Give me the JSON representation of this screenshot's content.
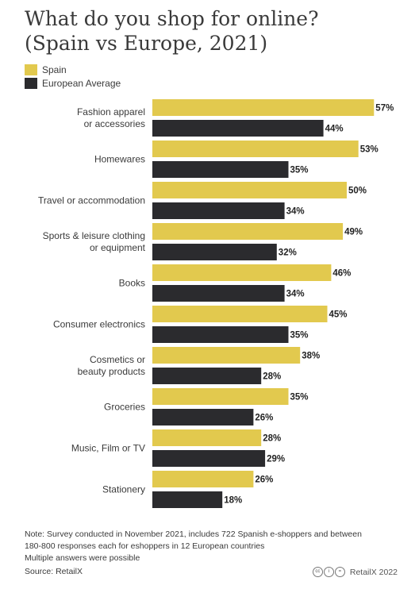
{
  "title_line1": "What do you shop for online?",
  "title_line2": "(Spain vs Europe, 2021)",
  "legend": {
    "spain": "Spain",
    "europe": "European Average"
  },
  "colors": {
    "spain": "#e2c94e",
    "europe": "#2b2b2e"
  },
  "note_line1": "Note: Survey conducted in November 2021, includes 722 Spanish e-shoppers and between",
  "note_line2": "180-800 responses each for eshoppers in 12 European countries",
  "note_line3": "Multiple answers were possible",
  "source": "Source: RetailX",
  "credit": "RetailX 2022",
  "chart_data": {
    "type": "bar",
    "orientation": "horizontal",
    "categories": [
      [
        "Fashion apparel",
        "or accessories"
      ],
      [
        "Homewares"
      ],
      [
        "Travel or accommodation"
      ],
      [
        "Sports & leisure clothing",
        "or equipment"
      ],
      [
        "Books"
      ],
      [
        "Consumer electronics"
      ],
      [
        "Cosmetics or",
        "beauty products"
      ],
      [
        "Groceries"
      ],
      [
        "Music, Film or TV"
      ],
      [
        "Stationery"
      ]
    ],
    "series": [
      {
        "name": "Spain",
        "values": [
          57,
          53,
          50,
          49,
          46,
          45,
          38,
          35,
          28,
          26
        ]
      },
      {
        "name": "European Average",
        "values": [
          44,
          35,
          34,
          32,
          34,
          35,
          28,
          26,
          29,
          18
        ]
      }
    ],
    "value_suffix": "%",
    "grid": false
  }
}
